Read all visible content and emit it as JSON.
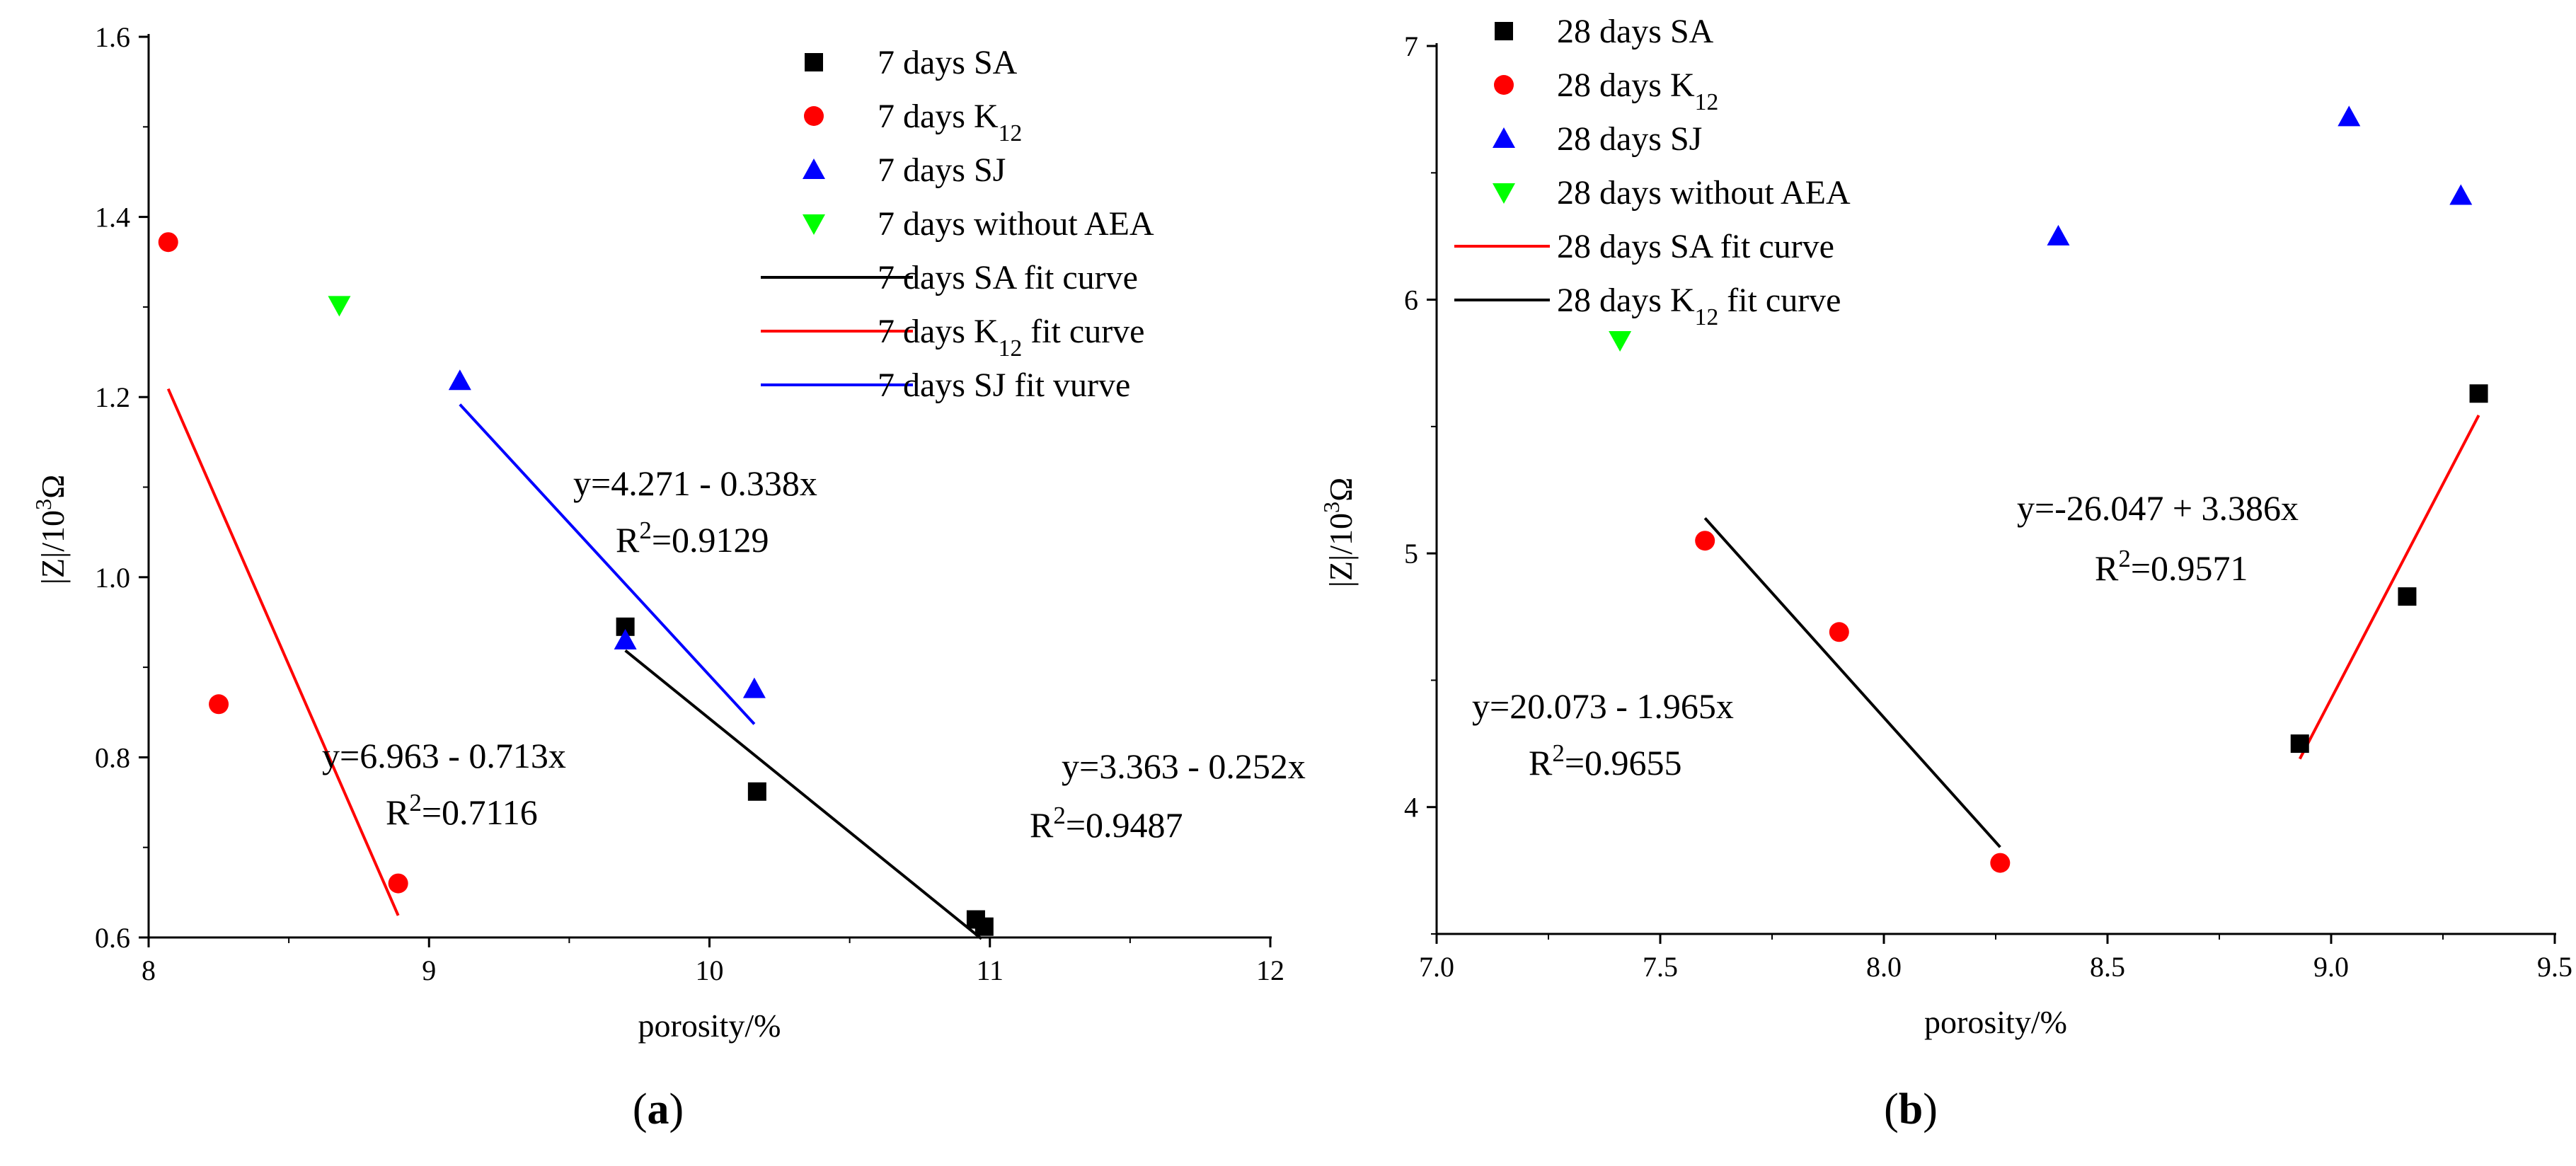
{
  "chart_data": [
    {
      "type": "scatter",
      "panel_label": "a",
      "xlabel": "porosity/%",
      "ylabel": "|Z|/10³Ω",
      "xlim": [
        8,
        12
      ],
      "ylim": [
        0.6,
        1.6
      ],
      "xticks": [
        "8",
        "9",
        "10",
        "11",
        "12"
      ],
      "yticks": [
        "0.6",
        "0.8",
        "1.0",
        "1.2",
        "1.4",
        "1.6"
      ],
      "legend_position": "top-right",
      "series": [
        {
          "name": "7 days SA",
          "marker": "square",
          "color": "#000000",
          "points": [
            [
              9.7,
              0.945
            ],
            [
              10.17,
              0.762
            ],
            [
              10.95,
              0.62
            ],
            [
              10.98,
              0.612
            ]
          ]
        },
        {
          "name": "7 days K₁₂",
          "marker": "circle",
          "color": "#ff0000",
          "points": [
            [
              8.07,
              1.372
            ],
            [
              8.25,
              0.859
            ],
            [
              8.89,
              0.66
            ]
          ]
        },
        {
          "name": "7 days SJ",
          "marker": "triangle-up",
          "color": "#0000ff",
          "points": [
            [
              9.11,
              1.218
            ],
            [
              9.7,
              0.93
            ],
            [
              10.16,
              0.876
            ]
          ]
        },
        {
          "name": "7 days without AEA",
          "marker": "triangle-down",
          "color": "#00ff00",
          "points": [
            [
              8.68,
              1.302
            ]
          ]
        }
      ],
      "fits": [
        {
          "name": "7 days SA fit curve",
          "color": "#000000",
          "x_range": [
            9.7,
            10.97
          ],
          "equation": "y=3.363 - 0.252x",
          "r2": "R²=0.9487"
        },
        {
          "name": "7 days K₁₂ fit curve",
          "color": "#ff0000",
          "x_range": [
            8.07,
            8.89
          ],
          "equation": "y=6.963 - 0.713x",
          "r2": "R²=0.7116"
        },
        {
          "name": "7 days SJ fit vurve",
          "color": "#0000ff",
          "x_range": [
            9.11,
            10.16
          ],
          "equation": "y=4.271 - 0.338x",
          "r2": "R²=0.9129"
        }
      ]
    },
    {
      "type": "scatter",
      "panel_label": "b",
      "xlabel": "porosity/%",
      "ylabel": "|Z|/10³Ω",
      "xlim": [
        7.0,
        9.5
      ],
      "ylim": [
        3.5,
        7.0
      ],
      "xticks": [
        "7.0",
        "7.5",
        "8.0",
        "8.5",
        "9.0",
        "9.5"
      ],
      "yticks": [
        "4",
        "5",
        "6",
        "7"
      ],
      "legend_position": "top-left",
      "series": [
        {
          "name": "28 days SA",
          "marker": "square",
          "color": "#000000",
          "points": [
            [
              8.93,
              4.25
            ],
            [
              9.17,
              4.83
            ],
            [
              9.33,
              5.63
            ]
          ]
        },
        {
          "name": "28 days K₁₂",
          "marker": "circle",
          "color": "#ff0000",
          "points": [
            [
              7.6,
              5.05
            ],
            [
              7.9,
              4.69
            ],
            [
              8.26,
              3.78
            ]
          ]
        },
        {
          "name": "28 days SJ",
          "marker": "triangle-up",
          "color": "#0000ff",
          "points": [
            [
              8.39,
              6.25
            ],
            [
              9.04,
              6.72
            ],
            [
              9.29,
              6.41
            ]
          ]
        },
        {
          "name": "28 days without AEA",
          "marker": "triangle-down",
          "color": "#00ff00",
          "points": [
            [
              7.41,
              5.84
            ]
          ]
        }
      ],
      "fits": [
        {
          "name": "28 days SA fit curve",
          "color": "#ff0000",
          "x_range": [
            8.93,
            9.33
          ],
          "equation": "y=-26.047 + 3.386x",
          "r2": "R²=0.9571"
        },
        {
          "name": "28 days K₁₂ fit curve",
          "color": "#000000",
          "x_range": [
            7.6,
            8.26
          ],
          "equation": "y=20.073 - 1.965x",
          "r2": "R²=0.9655"
        }
      ]
    }
  ]
}
